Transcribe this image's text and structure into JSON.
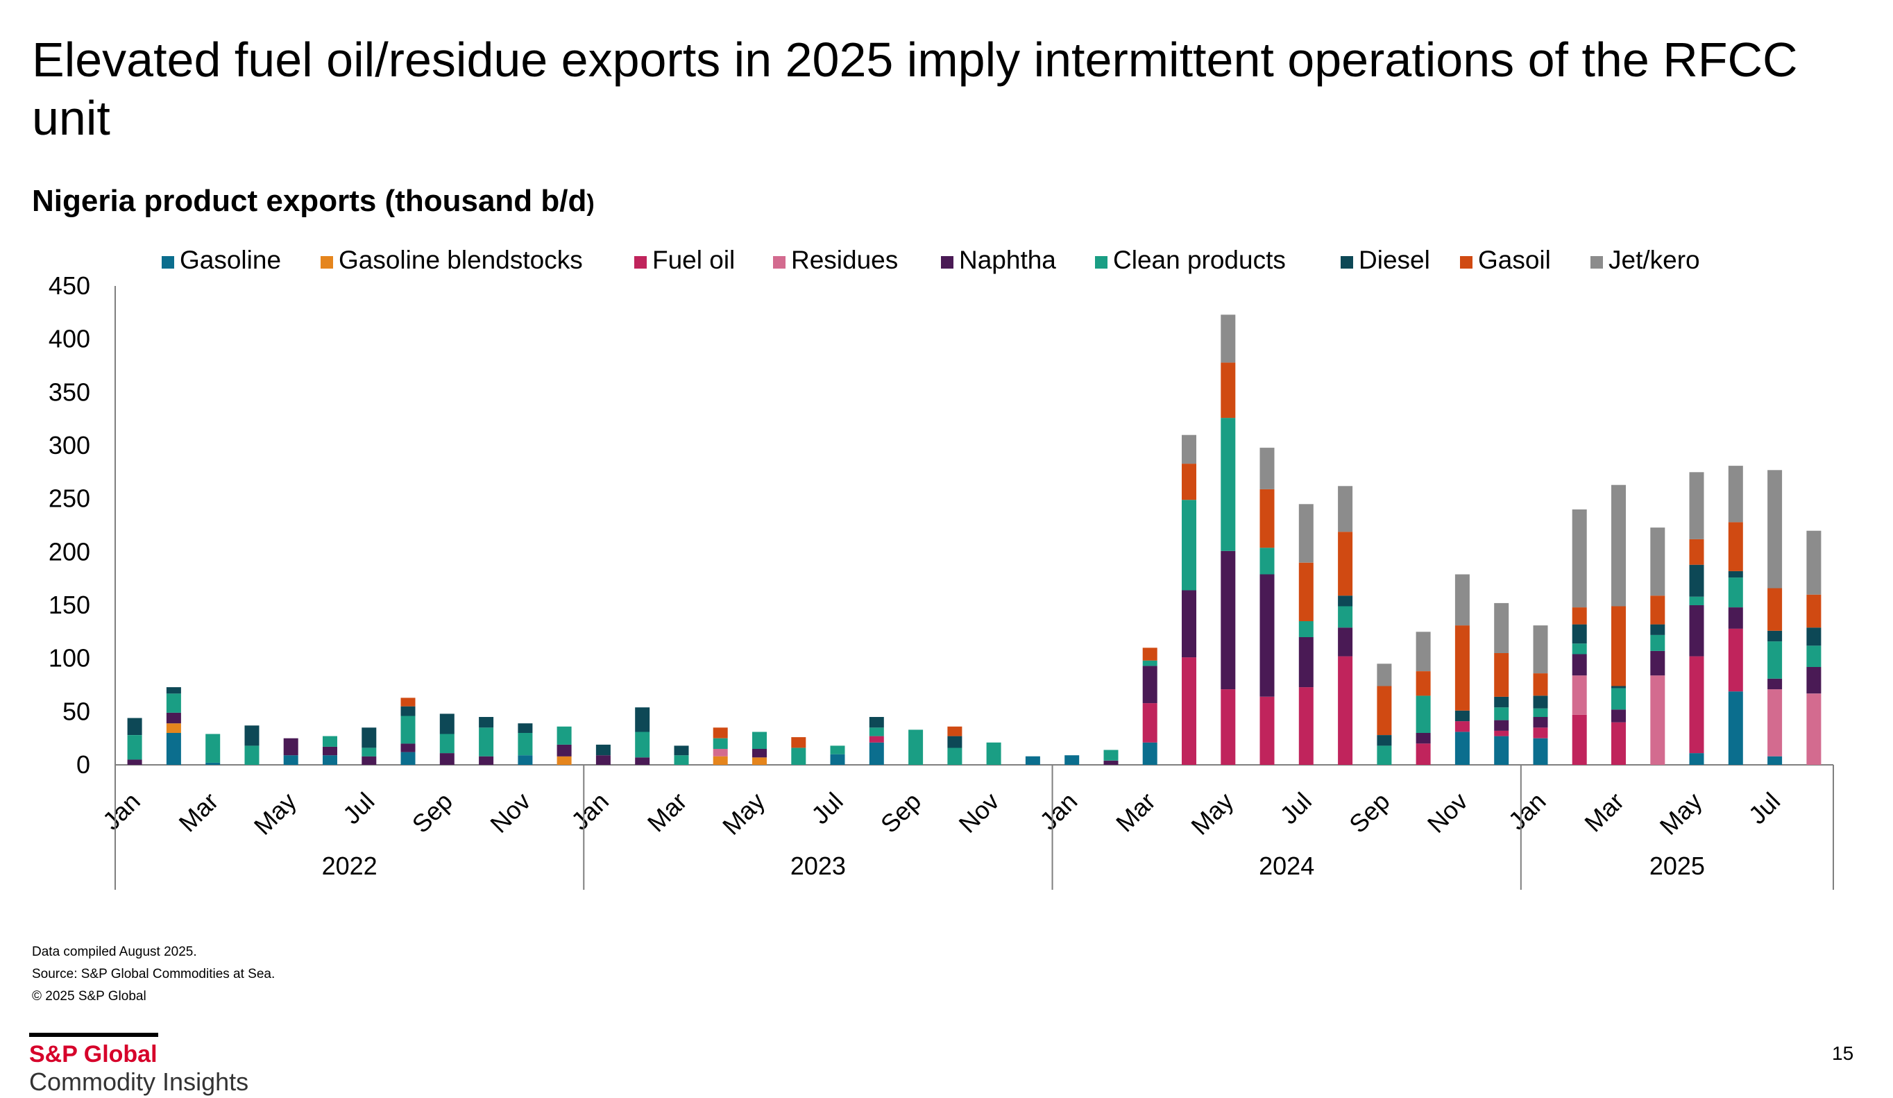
{
  "title": "Elevated fuel oil/residue  exports in 2025 imply intermittent operations of the RFCC unit",
  "footnotes": [
    "Data compiled August 2025.",
    "Source: S&P Global Commodities at Sea.",
    "© 2025 S&P Global"
  ],
  "brand": {
    "name": "S&P Global",
    "subtitle": "Commodity Insights"
  },
  "page_number": "15",
  "chart_data": {
    "type": "bar",
    "stacked": true,
    "title": "Nigeria product exports (thousand b/d",
    "title_suffix": ")",
    "xlabel": "",
    "ylabel": "",
    "ylim": [
      0,
      450
    ],
    "yticks": [
      0,
      50,
      100,
      150,
      200,
      250,
      300,
      350,
      400,
      450
    ],
    "legend_position": "top",
    "categories": [
      "Jan 2022",
      "Feb 2022",
      "Mar 2022",
      "Apr 2022",
      "May 2022",
      "Jun 2022",
      "Jul 2022",
      "Aug 2022",
      "Sep 2022",
      "Oct 2022",
      "Nov 2022",
      "Dec 2022",
      "Jan 2023",
      "Feb 2023",
      "Mar 2023",
      "Apr 2023",
      "May 2023",
      "Jun 2023",
      "Jul 2023",
      "Aug 2023",
      "Sep 2023",
      "Oct 2023",
      "Nov 2023",
      "Dec 2023",
      "Jan 2024",
      "Feb 2024",
      "Mar 2024",
      "Apr 2024",
      "May 2024",
      "Jun 2024",
      "Jul 2024",
      "Aug 2024",
      "Sep 2024",
      "Oct 2024",
      "Nov 2024",
      "Dec 2024",
      "Jan 2025",
      "Feb 2025",
      "Mar 2025",
      "Apr 2025",
      "May 2025",
      "Jun 2025",
      "Jul 2025",
      "Aug 2025"
    ],
    "month_labels": [
      "Jan",
      "",
      "Mar",
      "",
      "May",
      "",
      "Jul",
      "",
      "Sep",
      "",
      "Nov",
      "",
      "Jan",
      "",
      "Mar",
      "",
      "May",
      "",
      "Jul",
      "",
      "Sep",
      "",
      "Nov",
      "",
      "Jan",
      "",
      "Mar",
      "",
      "May",
      "",
      "Jul",
      "",
      "Sep",
      "",
      "Nov",
      "",
      "Jan",
      "",
      "Mar",
      "",
      "May",
      "",
      "Jul",
      ""
    ],
    "year_groups": [
      {
        "label": "2022",
        "start": 0,
        "count": 12
      },
      {
        "label": "2023",
        "start": 12,
        "count": 12
      },
      {
        "label": "2024",
        "start": 24,
        "count": 12
      },
      {
        "label": "2025",
        "start": 36,
        "count": 8
      }
    ],
    "series": [
      {
        "name": "Gasoline",
        "color": "#0b6e8e",
        "values": [
          0,
          30,
          2,
          0,
          9,
          9,
          0,
          12,
          0,
          0,
          9,
          0,
          0,
          0,
          0,
          0,
          0,
          0,
          10,
          21,
          0,
          0,
          0,
          8,
          9,
          0,
          21,
          0,
          0,
          0,
          0,
          0,
          0,
          0,
          31,
          27,
          25,
          0,
          0,
          0,
          11,
          69,
          8,
          0
        ]
      },
      {
        "name": "Gasoline blendstocks",
        "color": "#e5851d",
        "values": [
          0,
          9,
          0,
          0,
          0,
          0,
          0,
          0,
          0,
          0,
          0,
          8,
          0,
          0,
          0,
          8,
          7,
          0,
          0,
          0,
          0,
          0,
          0,
          0,
          0,
          0,
          0,
          0,
          0,
          0,
          0,
          0,
          0,
          0,
          0,
          0,
          0,
          0,
          0,
          0,
          0,
          0,
          0,
          0
        ]
      },
      {
        "name": "Fuel oil",
        "color": "#c0245c",
        "values": [
          0,
          0,
          0,
          0,
          0,
          0,
          0,
          0,
          0,
          0,
          0,
          0,
          0,
          0,
          0,
          0,
          0,
          0,
          0,
          6,
          0,
          0,
          0,
          0,
          0,
          0,
          37,
          101,
          71,
          64,
          73,
          102,
          0,
          20,
          10,
          5,
          10,
          47,
          40,
          0,
          91,
          59,
          0,
          0
        ]
      },
      {
        "name": "Residues",
        "color": "#d36b8f",
        "values": [
          0,
          0,
          0,
          0,
          0,
          0,
          0,
          0,
          0,
          0,
          0,
          0,
          0,
          0,
          0,
          7,
          0,
          0,
          0,
          0,
          0,
          0,
          0,
          0,
          0,
          0,
          0,
          0,
          0,
          0,
          0,
          0,
          0,
          0,
          0,
          0,
          0,
          37,
          0,
          84,
          0,
          0,
          63,
          67
        ]
      },
      {
        "name": "Naphtha",
        "color": "#4a1a55",
        "values": [
          5,
          10,
          0,
          0,
          16,
          8,
          8,
          8,
          11,
          8,
          0,
          11,
          9,
          7,
          0,
          0,
          8,
          0,
          0,
          0,
          0,
          0,
          0,
          0,
          0,
          4,
          35,
          63,
          130,
          115,
          47,
          27,
          0,
          10,
          0,
          10,
          10,
          20,
          12,
          23,
          48,
          20,
          10,
          25
        ]
      },
      {
        "name": "Clean products",
        "color": "#1a9e84",
        "values": [
          23,
          18,
          27,
          18,
          0,
          10,
          8,
          26,
          18,
          27,
          21,
          17,
          0,
          24,
          9,
          10,
          16,
          16,
          8,
          8,
          33,
          16,
          21,
          0,
          0,
          10,
          5,
          85,
          125,
          25,
          15,
          20,
          18,
          35,
          0,
          12,
          8,
          10,
          20,
          15,
          8,
          28,
          35,
          20
        ]
      },
      {
        "name": "Diesel",
        "color": "#0d4856",
        "values": [
          16,
          6,
          0,
          19,
          0,
          0,
          19,
          9,
          19,
          10,
          9,
          0,
          10,
          23,
          9,
          0,
          0,
          0,
          0,
          10,
          0,
          11,
          0,
          0,
          0,
          0,
          0,
          0,
          0,
          0,
          0,
          10,
          10,
          0,
          10,
          10,
          12,
          18,
          2,
          10,
          30,
          6,
          10,
          17
        ]
      },
      {
        "name": "Gasoil",
        "color": "#d04a12",
        "values": [
          0,
          0,
          0,
          0,
          0,
          0,
          0,
          8,
          0,
          0,
          0,
          0,
          0,
          0,
          0,
          10,
          0,
          10,
          0,
          0,
          0,
          9,
          0,
          0,
          0,
          0,
          12,
          34,
          52,
          55,
          55,
          60,
          46,
          23,
          80,
          41,
          21,
          16,
          75,
          27,
          24,
          46,
          40,
          31
        ]
      },
      {
        "name": "Jet/kero",
        "color": "#8c8c8c",
        "values": [
          0,
          0,
          0,
          0,
          0,
          0,
          0,
          0,
          0,
          0,
          0,
          0,
          0,
          0,
          0,
          0,
          0,
          0,
          0,
          0,
          0,
          0,
          0,
          0,
          0,
          0,
          0,
          27,
          45,
          39,
          55,
          43,
          21,
          37,
          48,
          47,
          45,
          92,
          114,
          64,
          63,
          53,
          111,
          60
        ]
      }
    ]
  }
}
